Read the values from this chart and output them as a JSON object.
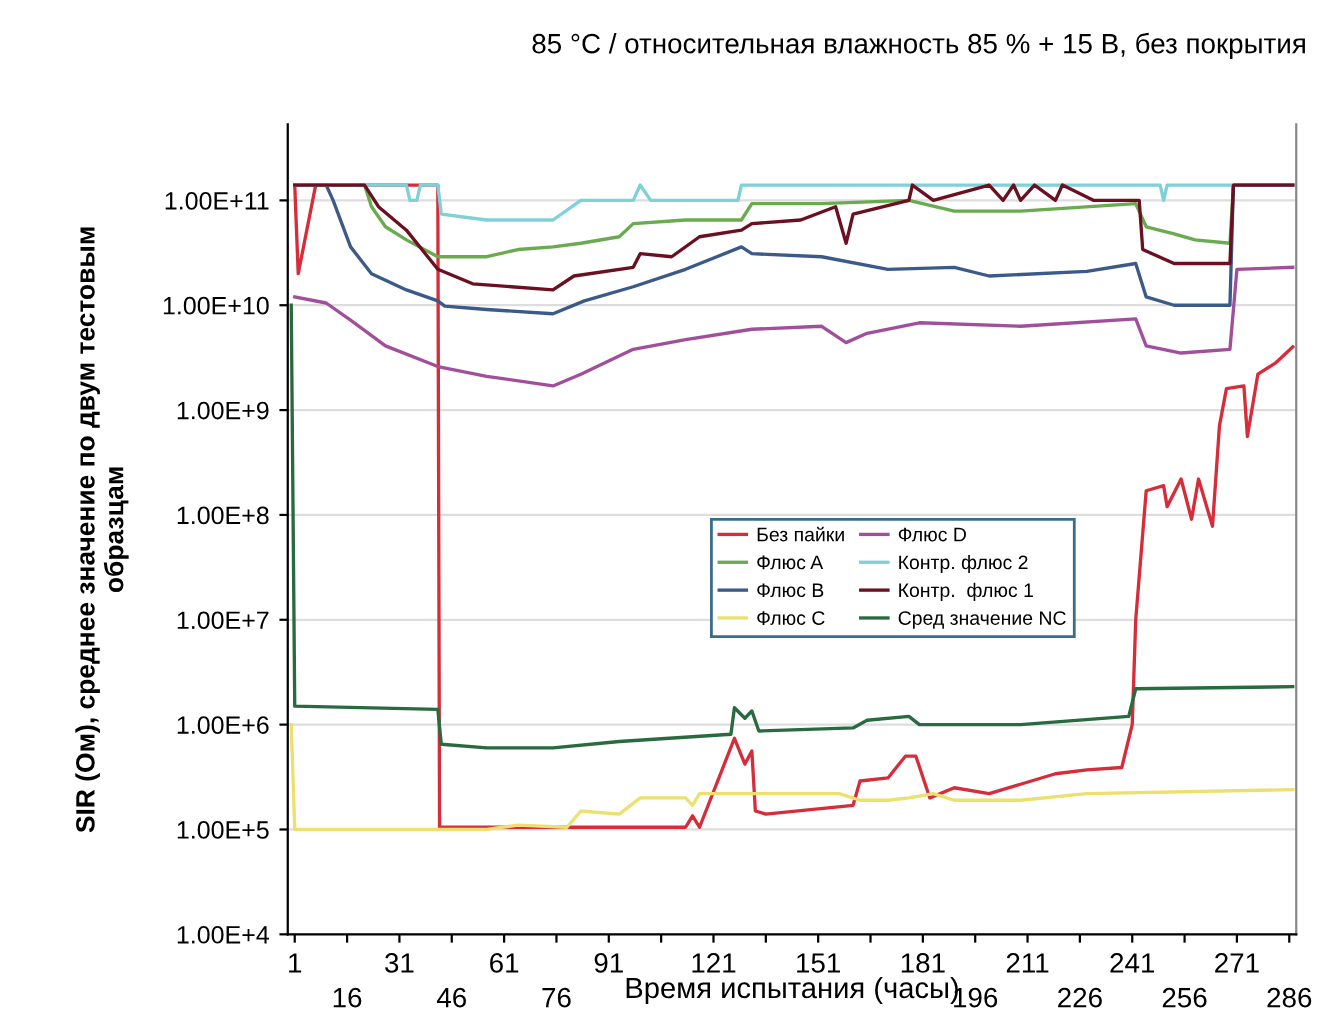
{
  "chart_data": {
    "type": "line",
    "title": "85 °C / относительная влажность 85 % + 15 В, без покрытия",
    "xlabel": "Время испытания (часы)",
    "ylabel": "SIR (Ом), среднее значение по двум тестовым\nобразцам",
    "log": "y",
    "grid": "y",
    "legend": "center",
    "line_style": "solid",
    "marker": "none",
    "xlim": [
      -1,
      288
    ],
    "xticks": [
      1,
      {
        "value": 16,
        "label": null
      },
      31,
      {
        "value": 46,
        "label": null
      },
      61,
      {
        "value": 76,
        "label": null
      },
      91,
      {
        "value": 106,
        "label": null
      },
      121,
      {
        "value": 136,
        "label": null
      },
      151,
      {
        "value": 166,
        "label": null
      },
      181,
      {
        "value": 196,
        "label": null
      },
      211,
      {
        "value": 226,
        "label": null
      },
      241,
      {
        "value": 256,
        "label": null
      },
      271,
      {
        "value": 286,
        "label": null
      }
    ],
    "x2lim": [
      -1,
      288
    ],
    "x2ticks": [
      16,
      46,
      76,
      196,
      226,
      256,
      286
    ],
    "ylim": [
      10000,
      530000000000
    ],
    "yticks": [
      {
        "value": 10000,
        "label": "1.00E+4"
      },
      {
        "value": 100000,
        "label": "1.00E+5"
      },
      {
        "value": 1000000,
        "label": "1.00E+6"
      },
      {
        "value": 10000000,
        "label": "1.00E+7"
      },
      {
        "value": 100000000,
        "label": "1.00E+8"
      },
      {
        "value": 1000000000,
        "label": "1.00E+9"
      },
      {
        "value": 10000000000,
        "label": "1.00E+10"
      },
      {
        "value": 100000000000,
        "label": "1.00E+11"
      }
    ],
    "series": [
      {
        "name": "Без пайки",
        "color": "#d62d3a",
        "x": [
          1,
          2,
          7,
          42,
          42.5,
          75,
          113,
          115,
          117,
          127,
          130,
          132,
          133,
          136,
          161,
          163,
          171,
          176,
          179,
          183,
          190,
          200,
          209,
          219,
          228,
          238,
          241,
          242,
          245,
          250,
          251,
          255,
          258,
          260,
          264,
          266,
          268,
          273,
          274,
          277,
          282,
          287
        ],
        "values": [
          140000000000.0,
          20000000000.0,
          140000000000.0,
          140000000000.0,
          105000.0,
          105000.0,
          105000.0,
          135000.0,
          105000.0,
          740000.0,
          420000.0,
          560000.0,
          150000.0,
          140000.0,
          170000.0,
          290000.0,
          310000.0,
          500000.0,
          500000.0,
          200000.0,
          250000.0,
          220000.0,
          270000.0,
          340000.0,
          370000.0,
          390000.0,
          1000000.0,
          10000000.0,
          170000000.0,
          190000000.0,
          120000000.0,
          220000000.0,
          91000000.0,
          220000000.0,
          78000000.0,
          710000000.0,
          1600000000.0,
          1700000000.0,
          560000000.0,
          2200000000.0,
          2800000000.0,
          4000000000.0
        ]
      },
      {
        "name": "Флюс A",
        "color": "#6aaa50",
        "x": [
          1,
          21,
          23,
          27,
          33,
          42,
          56,
          65,
          75,
          83,
          94,
          98,
          113,
          129,
          132,
          152,
          177,
          190,
          209,
          242,
          245,
          253,
          259,
          269,
          270,
          287
        ],
        "values": [
          140000000000.0,
          140000000000.0,
          87000000000.0,
          56000000000.0,
          42000000000.0,
          29000000000.0,
          29000000000.0,
          34000000000.0,
          36000000000.0,
          39000000000.0,
          45000000000.0,
          60000000000.0,
          65000000000.0,
          65000000000.0,
          93000000000.0,
          93000000000.0,
          100000000000.0,
          79000000000.0,
          79000000000.0,
          93000000000.0,
          56000000000.0,
          48000000000.0,
          42000000000.0,
          39000000000.0,
          140000000000.0,
          140000000000.0
        ]
      },
      {
        "name": "Флюс B",
        "color": "#3b5a8a",
        "x": [
          1,
          10,
          12,
          17,
          23,
          33,
          42,
          44,
          56,
          75,
          84,
          98,
          113,
          129,
          132,
          152,
          171,
          190,
          200,
          228,
          242,
          245,
          253,
          269,
          270,
          287
        ],
        "values": [
          140000000000.0,
          140000000000.0,
          100000000000.0,
          36000000000.0,
          20000000000.0,
          14000000000.0,
          11000000000.0,
          9800000000.0,
          9100000000.0,
          8300000000.0,
          11000000000.0,
          15000000000.0,
          22000000000.0,
          36000000000.0,
          31000000000.0,
          29000000000.0,
          22000000000.0,
          23000000000.0,
          19000000000.0,
          21000000000.0,
          25000000000.0,
          12000000000.0,
          10000000000.0,
          10000000000.0,
          140000000000.0,
          140000000000.0
        ]
      },
      {
        "name": "Флюс C",
        "color": "#ece070",
        "x": [
          0,
          1,
          56,
          65,
          79,
          83,
          94,
          100,
          113,
          115,
          117,
          157,
          163,
          171,
          177,
          184,
          190,
          209,
          228,
          287
        ],
        "values": [
          1000000.0,
          100000.0,
          100000.0,
          110000.0,
          105000.0,
          150000.0,
          140000.0,
          200000.0,
          200000.0,
          170000.0,
          220000.0,
          220000.0,
          190000.0,
          190000.0,
          200000.0,
          220000.0,
          190000.0,
          190000.0,
          220000.0,
          240000.0
        ]
      },
      {
        "name": "Флюс D",
        "color": "#a0509a",
        "x": [
          1,
          10,
          17,
          27,
          42,
          56,
          75,
          83,
          98,
          113,
          132,
          152,
          159,
          165,
          180,
          209,
          242,
          245,
          255,
          269,
          271,
          287
        ],
        "values": [
          12000000000.0,
          10500000000.0,
          7200000000.0,
          4100000000.0,
          2600000000.0,
          2100000000.0,
          1700000000.0,
          2200000000.0,
          3800000000.0,
          4700000000.0,
          5900000000.0,
          6300000000.0,
          4400000000.0,
          5400000000.0,
          6800000000.0,
          6300000000.0,
          7400000000.0,
          4100000000.0,
          3500000000.0,
          3800000000.0,
          22000000000.0,
          23000000000.0
        ]
      },
      {
        "name": "Контр. флюс 2",
        "color": "#80d0d8",
        "x": [
          1,
          33,
          34,
          36,
          37,
          42,
          43,
          56,
          65,
          75,
          83,
          90,
          98,
          100,
          103,
          113,
          128,
          129,
          249,
          250,
          251,
          287
        ],
        "values": [
          140000000000.0,
          140000000000.0,
          100000000000.0,
          100000000000.0,
          140000000000.0,
          140000000000.0,
          74000000000.0,
          65000000000.0,
          65000000000.0,
          65000000000.0,
          100000000000.0,
          100000000000.0,
          100000000000.0,
          140000000000.0,
          100000000000.0,
          100000000000.0,
          100000000000.0,
          140000000000.0,
          140000000000.0,
          100000000000.0,
          140000000000.0,
          140000000000.0
        ]
      },
      {
        "name": "Контр.  флюс 1",
        "color": "#6a1020",
        "x": [
          1,
          21,
          25,
          33,
          42,
          52,
          75,
          81,
          98,
          100,
          109,
          117,
          129,
          132,
          146,
          156,
          159,
          161,
          177,
          178,
          184,
          200,
          204,
          207,
          209,
          213,
          219,
          221,
          230,
          243,
          244,
          253,
          269,
          270,
          287
        ],
        "values": [
          140000000000.0,
          140000000000.0,
          87000000000.0,
          52000000000.0,
          22000000000.0,
          16000000000.0,
          14000000000.0,
          19000000000.0,
          23000000000.0,
          31000000000.0,
          29000000000.0,
          45000000000.0,
          52000000000.0,
          60000000000.0,
          65000000000.0,
          87000000000.0,
          39000000000.0,
          74000000000.0,
          100000000000.0,
          140000000000.0,
          100000000000.0,
          140000000000.0,
          100000000000.0,
          140000000000.0,
          100000000000.0,
          140000000000.0,
          100000000000.0,
          140000000000.0,
          100000000000.0,
          100000000000.0,
          34000000000.0,
          25000000000.0,
          25000000000.0,
          140000000000.0,
          140000000000.0
        ]
      },
      {
        "name": "Сред значение NC",
        "color": "#2a6a40",
        "x": [
          0,
          1,
          42,
          43,
          56,
          75,
          94,
          126,
          127,
          130,
          132,
          134,
          161,
          165,
          177,
          180,
          209,
          240,
          242,
          287
        ],
        "values": [
          10000000000.0,
          1500000.0,
          1400000.0,
          650000.0,
          600000.0,
          600000.0,
          690000.0,
          810000.0,
          1450000.0,
          1150000.0,
          1350000.0,
          870000.0,
          930000.0,
          1100000.0,
          1200000.0,
          1000000.0,
          1000000.0,
          1200000.0,
          2200000.0,
          2300000.0
        ]
      }
    ]
  }
}
